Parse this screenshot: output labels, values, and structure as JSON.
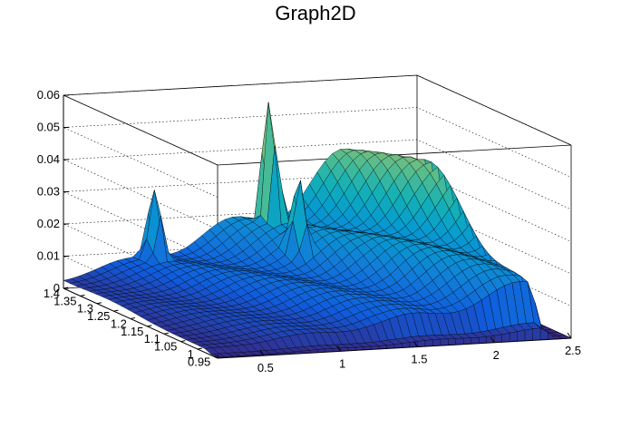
{
  "chart_data": {
    "type": "surface",
    "title": "Graph2D",
    "x_ticks": [
      "0.5",
      "1",
      "1.5",
      "2",
      "2.5"
    ],
    "y_ticks": [
      "0.95",
      "1",
      "1.05",
      "1.1",
      "1.15",
      "1.2",
      "1.25",
      "1.3",
      "1.35",
      "1.4"
    ],
    "z_ticks": [
      "0",
      "0.01",
      "0.02",
      "0.03",
      "0.04",
      "0.05",
      "0.06"
    ],
    "xlim": [
      0.2,
      2.5
    ],
    "ylim": [
      0.94,
      1.4
    ],
    "zlim": [
      0,
      0.06
    ],
    "grid": true,
    "colormap": "parula",
    "ridge_profile": {
      "x": [
        0.2,
        0.6,
        1.0,
        1.4,
        1.7,
        2.0,
        2.3
      ],
      "z": [
        0.003,
        0.007,
        0.012,
        0.018,
        0.024,
        0.033,
        0.042
      ]
    },
    "peaks": [
      {
        "x": 1.46,
        "y": 1.36,
        "z": 0.058
      },
      {
        "x": 1.44,
        "y": 1.27,
        "z": 0.038
      },
      {
        "x": 0.75,
        "y": 1.38,
        "z": 0.03
      }
    ]
  }
}
